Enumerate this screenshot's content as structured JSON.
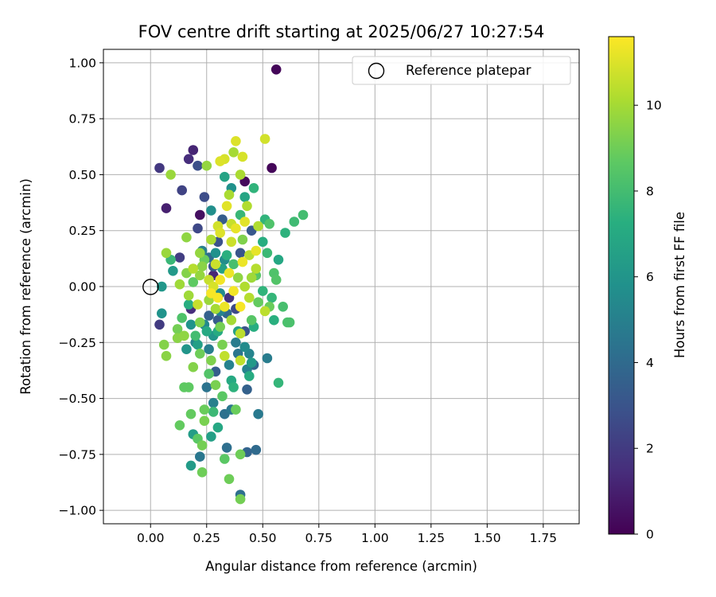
{
  "chart_data": {
    "type": "scatter",
    "title": "FOV centre drift starting at 2025/06/27 10:27:54",
    "xlabel": "Angular distance from reference (arcmin)",
    "ylabel": "Rotation from reference (arcmin)",
    "xlim": [
      -0.21,
      1.91
    ],
    "ylim": [
      -1.06,
      1.06
    ],
    "xticks": [
      0.0,
      0.25,
      0.5,
      0.75,
      1.0,
      1.25,
      1.5,
      1.75
    ],
    "xtick_labels": [
      "0.00",
      "0.25",
      "0.50",
      "0.75",
      "1.00",
      "1.25",
      "1.50",
      "1.75"
    ],
    "yticks": [
      -1.0,
      -0.75,
      -0.5,
      -0.25,
      0.0,
      0.25,
      0.5,
      0.75,
      1.0
    ],
    "ytick_labels": [
      "−1.00",
      "−0.75",
      "−0.50",
      "−0.25",
      "0.00",
      "0.25",
      "0.50",
      "0.75",
      "1.00"
    ],
    "grid": true,
    "legend": {
      "placement": "top-right",
      "entries": [
        "Reference platepar"
      ]
    },
    "reference_point": {
      "x": 0.0,
      "y": 0.0,
      "label": "Reference platepar"
    },
    "colorbar": {
      "label": "Hours from first FF file",
      "range": [
        0,
        11.6
      ],
      "ticks": [
        0,
        2,
        4,
        6,
        8,
        10
      ],
      "tick_labels": [
        "0",
        "2",
        "4",
        "6",
        "8",
        "10"
      ],
      "colormap": "viridis"
    },
    "series": [
      {
        "points": [
          [
            0.56,
            0.97,
            0.2
          ],
          [
            0.54,
            0.53,
            0.2
          ],
          [
            0.42,
            0.47,
            0.3
          ],
          [
            0.22,
            0.32,
            0.5
          ],
          [
            0.19,
            0.61,
            1.2
          ],
          [
            0.17,
            0.57,
            1.5
          ],
          [
            0.04,
            0.53,
            1.9
          ],
          [
            0.07,
            0.35,
            1.0
          ],
          [
            0.14,
            0.43,
            2.3
          ],
          [
            0.21,
            0.54,
            2.8
          ],
          [
            0.24,
            0.4,
            2.7
          ],
          [
            0.21,
            0.26,
            2.5
          ],
          [
            0.04,
            -0.17,
            2.0
          ],
          [
            0.18,
            -0.1,
            1.5
          ],
          [
            0.28,
            0.05,
            1.3
          ],
          [
            0.35,
            -0.05,
            1.7
          ],
          [
            0.3,
            0.2,
            2.9
          ],
          [
            0.13,
            0.13,
            2.1
          ],
          [
            0.4,
            0.15,
            3.1
          ],
          [
            0.42,
            -0.2,
            3.0
          ],
          [
            0.38,
            -0.1,
            2.6
          ],
          [
            0.3,
            -0.15,
            3.3
          ],
          [
            0.32,
            0.3,
            3.4
          ],
          [
            0.45,
            0.25,
            3.2
          ],
          [
            0.26,
            -0.13,
            3.6
          ],
          [
            0.29,
            -0.38,
            3.5
          ],
          [
            0.43,
            -0.46,
            3.6
          ],
          [
            0.46,
            -0.35,
            3.8
          ],
          [
            0.43,
            -0.74,
            3.7
          ],
          [
            0.47,
            -0.73,
            4.0
          ],
          [
            0.34,
            -0.72,
            4.2
          ],
          [
            0.25,
            -0.45,
            4.4
          ],
          [
            0.39,
            -0.3,
            4.5
          ],
          [
            0.36,
            -0.55,
            4.6
          ],
          [
            0.33,
            -0.57,
            4.3
          ],
          [
            0.48,
            -0.57,
            4.7
          ],
          [
            0.22,
            -0.76,
            4.6
          ],
          [
            0.4,
            -0.93,
            4.2
          ],
          [
            0.52,
            -0.32,
            4.8
          ],
          [
            0.28,
            -0.52,
            5.0
          ],
          [
            0.35,
            -0.35,
            5.1
          ],
          [
            0.44,
            -0.3,
            5.2
          ],
          [
            0.2,
            -0.25,
            5.3
          ],
          [
            0.24,
            -0.17,
            5.4
          ],
          [
            0.31,
            -0.03,
            5.5
          ],
          [
            0.33,
            0.12,
            5.6
          ],
          [
            0.27,
            0.34,
            5.7
          ],
          [
            0.36,
            0.44,
            5.8
          ],
          [
            0.05,
            -0.12,
            5.9
          ],
          [
            0.16,
            -0.28,
            6.0
          ],
          [
            0.05,
            0.0,
            6.1
          ],
          [
            0.1,
            0.07,
            6.2
          ],
          [
            0.18,
            -0.8,
            6.3
          ],
          [
            0.19,
            -0.66,
            6.4
          ],
          [
            0.27,
            -0.67,
            6.5
          ],
          [
            0.39,
            -0.2,
            6.6
          ],
          [
            0.33,
            0.49,
            6.7
          ],
          [
            0.42,
            0.4,
            6.8
          ],
          [
            0.57,
            0.12,
            6.9
          ],
          [
            0.36,
            -0.42,
            7.0
          ],
          [
            0.3,
            -0.2,
            7.1
          ],
          [
            0.44,
            -0.4,
            7.1
          ],
          [
            0.46,
            -0.18,
            7.2
          ],
          [
            0.5,
            0.2,
            7.2
          ],
          [
            0.55,
            -0.15,
            7.3
          ],
          [
            0.6,
            0.24,
            7.4
          ],
          [
            0.46,
            0.44,
            7.5
          ],
          [
            0.51,
            0.3,
            7.5
          ],
          [
            0.57,
            -0.43,
            7.6
          ],
          [
            0.54,
            -0.05,
            7.6
          ],
          [
            0.4,
            0.32,
            7.7
          ],
          [
            0.52,
            0.15,
            7.8
          ],
          [
            0.64,
            0.29,
            7.9
          ],
          [
            0.68,
            0.32,
            8.0
          ],
          [
            0.59,
            -0.09,
            8.1
          ],
          [
            0.61,
            -0.16,
            8.2
          ],
          [
            0.62,
            -0.16,
            8.2
          ],
          [
            0.55,
            0.06,
            8.3
          ],
          [
            0.56,
            0.03,
            8.4
          ],
          [
            0.53,
            0.28,
            8.3
          ],
          [
            0.47,
            0.05,
            8.5
          ],
          [
            0.45,
            -0.15,
            8.5
          ],
          [
            0.33,
            -0.77,
            8.6
          ],
          [
            0.21,
            -0.68,
            8.6
          ],
          [
            0.15,
            -0.45,
            8.7
          ],
          [
            0.17,
            -0.45,
            8.7
          ],
          [
            0.13,
            -0.62,
            8.8
          ],
          [
            0.18,
            -0.57,
            8.8
          ],
          [
            0.24,
            -0.55,
            8.9
          ],
          [
            0.38,
            -0.55,
            8.9
          ],
          [
            0.4,
            -0.75,
            9.0
          ],
          [
            0.35,
            -0.86,
            9.0
          ],
          [
            0.23,
            -0.83,
            9.0
          ],
          [
            0.4,
            -0.95,
            9.1
          ],
          [
            0.23,
            -0.71,
            9.1
          ],
          [
            0.29,
            -0.44,
            9.2
          ],
          [
            0.32,
            -0.26,
            9.2
          ],
          [
            0.27,
            -0.33,
            9.3
          ],
          [
            0.22,
            -0.16,
            9.3
          ],
          [
            0.19,
            -0.36,
            9.4
          ],
          [
            0.06,
            -0.26,
            9.4
          ],
          [
            0.07,
            -0.31,
            9.5
          ],
          [
            0.12,
            -0.23,
            9.5
          ],
          [
            0.15,
            -0.22,
            9.6
          ],
          [
            0.16,
            0.22,
            9.6
          ],
          [
            0.22,
            0.15,
            9.7
          ],
          [
            0.25,
            0.54,
            9.7
          ],
          [
            0.09,
            0.5,
            9.8
          ],
          [
            0.07,
            0.15,
            9.8
          ],
          [
            0.13,
            0.01,
            9.9
          ],
          [
            0.17,
            -0.04,
            9.9
          ],
          [
            0.29,
            -0.1,
            10.0
          ],
          [
            0.37,
            0.6,
            10.0
          ],
          [
            0.4,
            0.5,
            10.1
          ],
          [
            0.35,
            0.41,
            10.1
          ],
          [
            0.43,
            0.36,
            10.2
          ],
          [
            0.48,
            0.27,
            10.2
          ],
          [
            0.47,
            0.08,
            10.3
          ],
          [
            0.44,
            -0.05,
            10.3
          ],
          [
            0.51,
            -0.11,
            10.4
          ],
          [
            0.4,
            -0.21,
            10.4
          ],
          [
            0.4,
            -0.33,
            10.5
          ],
          [
            0.33,
            -0.31,
            10.5
          ],
          [
            0.21,
            -0.08,
            10.6
          ],
          [
            0.26,
            0.03,
            10.6
          ],
          [
            0.29,
            0.1,
            10.7
          ],
          [
            0.36,
            0.2,
            10.7
          ],
          [
            0.3,
            0.27,
            10.8
          ],
          [
            0.51,
            0.66,
            10.8
          ],
          [
            0.41,
            0.58,
            10.9
          ],
          [
            0.33,
            0.57,
            10.9
          ],
          [
            0.38,
            0.65,
            11.0
          ],
          [
            0.31,
            0.56,
            11.0
          ],
          [
            0.34,
            0.36,
            11.1
          ],
          [
            0.42,
            0.29,
            11.1
          ],
          [
            0.38,
            0.26,
            11.2
          ],
          [
            0.47,
            0.16,
            11.2
          ],
          [
            0.41,
            0.11,
            11.3
          ],
          [
            0.35,
            0.06,
            11.3
          ],
          [
            0.31,
            0.03,
            11.4
          ],
          [
            0.37,
            -0.02,
            11.4
          ],
          [
            0.3,
            -0.05,
            11.5
          ],
          [
            0.27,
            -0.03,
            11.5
          ],
          [
            0.4,
            -0.09,
            11.5
          ],
          [
            0.23,
            0.09,
            9.5
          ],
          [
            0.26,
            -0.06,
            9.8
          ],
          [
            0.2,
            -0.22,
            8.0
          ],
          [
            0.18,
            -0.17,
            5.9
          ],
          [
            0.21,
            -0.26,
            6.5
          ],
          [
            0.25,
            -0.2,
            7.0
          ],
          [
            0.28,
            -0.22,
            6.1
          ],
          [
            0.31,
            -0.11,
            5.2
          ],
          [
            0.26,
            -0.28,
            4.9
          ],
          [
            0.34,
            -0.12,
            3.9
          ],
          [
            0.38,
            -0.25,
            4.8
          ],
          [
            0.42,
            -0.27,
            5.5
          ],
          [
            0.45,
            -0.34,
            6.2
          ],
          [
            0.43,
            -0.37,
            5.1
          ],
          [
            0.37,
            -0.45,
            7.4
          ],
          [
            0.32,
            -0.49,
            8.6
          ],
          [
            0.28,
            -0.56,
            7.8
          ],
          [
            0.24,
            -0.6,
            9.2
          ],
          [
            0.3,
            -0.63,
            6.9
          ],
          [
            0.26,
            -0.39,
            8.4
          ],
          [
            0.22,
            -0.3,
            9.0
          ],
          [
            0.17,
            -0.08,
            7.2
          ],
          [
            0.14,
            -0.14,
            8.3
          ],
          [
            0.12,
            -0.19,
            9.1
          ],
          [
            0.09,
            0.12,
            7.7
          ],
          [
            0.16,
            0.06,
            9.4
          ],
          [
            0.19,
            0.02,
            8.7
          ],
          [
            0.23,
            0.16,
            5.0
          ],
          [
            0.26,
            0.13,
            4.1
          ],
          [
            0.28,
            0.09,
            3.1
          ],
          [
            0.32,
            0.08,
            6.6
          ],
          [
            0.34,
            0.14,
            7.3
          ],
          [
            0.37,
            0.1,
            8.1
          ],
          [
            0.39,
            0.04,
            9.6
          ],
          [
            0.42,
            0.0,
            10.2
          ],
          [
            0.45,
            0.04,
            9.9
          ],
          [
            0.48,
            -0.07,
            8.8
          ],
          [
            0.5,
            -0.02,
            7.5
          ],
          [
            0.53,
            -0.09,
            8.9
          ],
          [
            0.44,
            0.14,
            10.4
          ],
          [
            0.41,
            0.21,
            9.3
          ],
          [
            0.36,
            0.28,
            10.6
          ],
          [
            0.31,
            0.24,
            11.0
          ],
          [
            0.27,
            0.21,
            10.1
          ],
          [
            0.24,
            0.12,
            8.9
          ],
          [
            0.22,
            0.05,
            9.7
          ],
          [
            0.19,
            0.08,
            10.3
          ],
          [
            0.28,
            0.0,
            10.9
          ],
          [
            0.33,
            -0.09,
            11.3
          ],
          [
            0.36,
            -0.15,
            10.0
          ],
          [
            0.31,
            -0.18,
            9.1
          ],
          [
            0.29,
            0.15,
            5.8
          ]
        ]
      }
    ]
  }
}
